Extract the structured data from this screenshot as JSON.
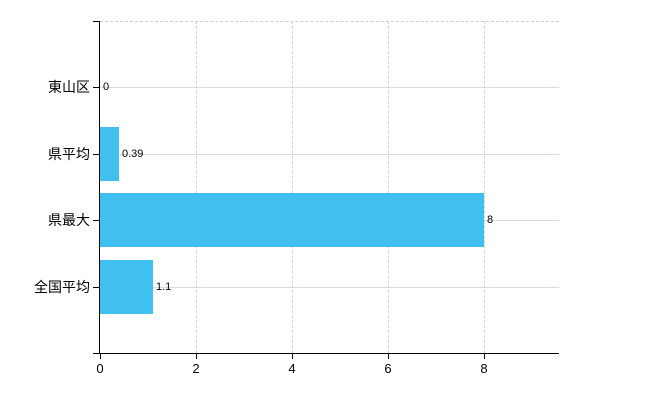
{
  "chart_data": {
    "type": "bar",
    "orientation": "horizontal",
    "title": "",
    "categories": [
      "東山区",
      "県平均",
      "県最大",
      "全国平均"
    ],
    "values": [
      0,
      0.39,
      8,
      1.1
    ],
    "value_labels": [
      "0",
      "0.39",
      "8",
      "1.1"
    ],
    "xlabel": "",
    "ylabel": "",
    "xlim": [
      0,
      9.56
    ],
    "x_ticks": [
      0,
      2,
      4,
      6,
      8
    ],
    "x_tick_labels": [
      "0",
      "2",
      "4",
      "6",
      "8"
    ],
    "grid": true,
    "legend": false
  },
  "colors": {
    "bar": "#3fc0ef",
    "h_gridline": "#d6ded6",
    "v_gridline": "#d4d4d4",
    "plot_top_border": "#cfcfcf",
    "axis": "#000000",
    "text": "#000000",
    "background": "#ffffff"
  }
}
